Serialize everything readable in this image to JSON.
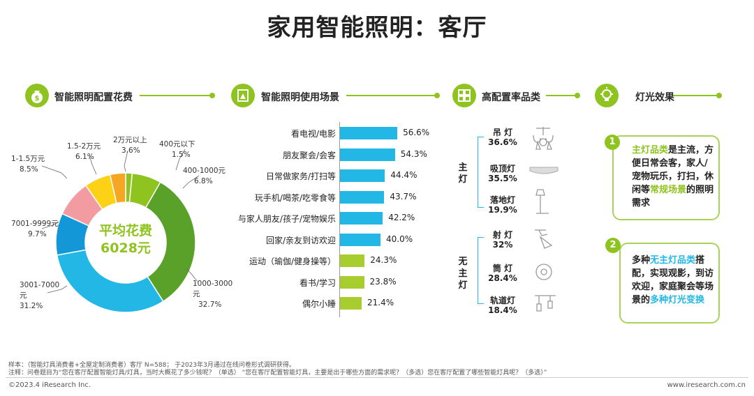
{
  "title": "家用智能照明：客厅",
  "sections": {
    "spend": "智能照明配置花费",
    "scenes": "智能照明使用场景",
    "products": "高配置率品类",
    "effects": "灯光效果"
  },
  "chart_data": [
    {
      "type": "pie",
      "title": "智能照明配置花费",
      "center_label": [
        "平均花费",
        "6028元"
      ],
      "slices": [
        {
          "label": "400元以下",
          "value": 1.5,
          "color": "#8fc31f"
        },
        {
          "label": "400-1000元",
          "value": 6.8,
          "color": "#8fc31f"
        },
        {
          "label": "1000-3000元",
          "value": 32.7,
          "color": "#5aa12a"
        },
        {
          "label": "3001-7000元",
          "value": 31.2,
          "color": "#23b7e5"
        },
        {
          "label": "7001-9999元",
          "value": 9.7,
          "color": "#1497d6"
        },
        {
          "label": "1-1.5万元",
          "value": 8.5,
          "color": "#f29ba0"
        },
        {
          "label": "1.5-2万元",
          "value": 6.1,
          "color": "#fcd116"
        },
        {
          "label": "2万元以上",
          "value": 3.6,
          "color": "#f5a623"
        }
      ],
      "label_texts": [
        {
          "l1": "400元以下",
          "l2": "1.5%"
        },
        {
          "l1": "400-1000元",
          "l2": "6.8%"
        },
        {
          "l1": "1000-3000",
          "l2": "32.7%"
        },
        {
          "l1": "3001-7000",
          "l2": "元",
          "l3": "31.2%"
        },
        {
          "l1": "7001-9999元",
          "l2": "9.7%"
        },
        {
          "l1": "1-1.5万元",
          "l2": "8.5%"
        },
        {
          "l1": "1.5-2万元",
          "l2": "6.1%"
        },
        {
          "l1": "2万元以上",
          "l2": "3.6%"
        }
      ],
      "tail_unit": "元"
    },
    {
      "type": "bar",
      "orientation": "horizontal",
      "title": "智能照明使用场景",
      "categories": [
        "看电视/电影",
        "朋友聚会/会客",
        "日常做家务/打扫等",
        "玩手机/喝茶/吃零食等",
        "与家人朋友/孩子/宠物娱乐",
        "回家/亲友到访欢迎",
        "运动（瑜伽/健身操等）",
        "看书/学习",
        "偶尔小睡"
      ],
      "values": [
        56.6,
        54.3,
        44.4,
        43.7,
        42.2,
        40.0,
        24.3,
        23.8,
        21.4
      ],
      "value_labels": [
        "56.6%",
        "54.3%",
        "44.4%",
        "43.7%",
        "42.2%",
        "40.0%",
        "24.3%",
        "23.8%",
        "21.4%"
      ],
      "colors": [
        "#23b7e5",
        "#23b7e5",
        "#23b7e5",
        "#23b7e5",
        "#23b7e5",
        "#23b7e5",
        "#a8cd2e",
        "#a8cd2e",
        "#a8cd2e"
      ],
      "xlim": [
        0,
        100
      ]
    }
  ],
  "products": {
    "main_group": "主灯",
    "sub_group": "无主灯",
    "items": [
      {
        "name": "吊 灯",
        "value": "36.6%",
        "icon": "chandelier-icon"
      },
      {
        "name": "吸顶灯",
        "value": "35.5%",
        "icon": "ceiling-light-icon"
      },
      {
        "name": "落地灯",
        "value": "19.9%",
        "icon": "floor-lamp-icon"
      },
      {
        "name": "射 灯",
        "value": "32%",
        "icon": "spotlight-icon"
      },
      {
        "name": "筒 灯",
        "value": "28.4%",
        "icon": "downlight-icon"
      },
      {
        "name": "轨道灯",
        "value": "18.4%",
        "icon": "track-light-icon"
      }
    ]
  },
  "effects": [
    {
      "num": "1",
      "text_hl1": "主灯品类",
      "text_a": "是主流，方便日常会客，家人/宠物玩乐，打扫，休闲等",
      "text_hl2": "常规场景",
      "text_b": "的照明需求"
    },
    {
      "num": "2",
      "text_a": "多种",
      "text_hl1": "无主灯品类",
      "text_b": "搭配，实现观影，到访欢迎，家庭聚会等场景的",
      "text_hl2": "多种灯光变换"
    }
  ],
  "footnotes": {
    "sample": "样本：（智能灯具消费者+全屋定制消费者）客厅 N=588； 于2023年3月通过在线问卷形式调研获得。",
    "note": "注释：问卷题目为“您在客厅配置智能灯具/灯具，当时大概花了多少钱呢？（单选） “您在客厅配置智能灯具，主要是出于哪些方面的需求呢？（多选）您在客厅配置了哪些智能灯具呢？（多选）”"
  },
  "footer": {
    "copyright": "©2023.4 iResearch Inc.",
    "url": "www.iresearch.com.cn"
  }
}
